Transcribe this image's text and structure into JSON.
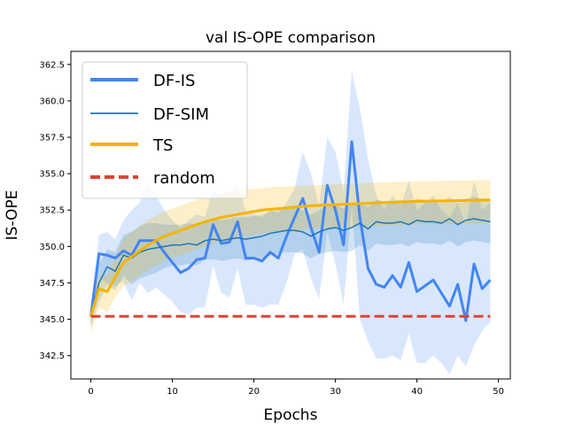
{
  "chart_data": {
    "type": "line",
    "title": "val IS-OPE comparison",
    "xlabel": "Epochs",
    "ylabel": "IS-OPE",
    "xlim": [
      -2.45,
      51.45
    ],
    "ylim": [
      340.9,
      363.4
    ],
    "xticks": [
      0,
      10,
      20,
      30,
      40,
      50
    ],
    "xtick_labels": [
      "0",
      "10",
      "20",
      "30",
      "40",
      "50"
    ],
    "yticks": [
      342.5,
      345.0,
      347.5,
      350.0,
      352.5,
      355.0,
      357.5,
      360.0,
      362.5
    ],
    "ytick_labels": [
      "342.5",
      "345.0",
      "347.5",
      "350.0",
      "352.5",
      "355.0",
      "357.5",
      "360.0",
      "362.5"
    ],
    "grid": false,
    "legend_position": "top-left",
    "series": [
      {
        "name": "DF-IS",
        "color": "#4285f4",
        "style": "solid-thick",
        "x": [
          0,
          1,
          2,
          3,
          4,
          5,
          6,
          7,
          8,
          9,
          10,
          11,
          12,
          13,
          14,
          15,
          16,
          17,
          18,
          19,
          20,
          21,
          22,
          23,
          24,
          25,
          26,
          27,
          28,
          29,
          30,
          31,
          32,
          33,
          34,
          35,
          36,
          37,
          38,
          39,
          40,
          41,
          42,
          43,
          44,
          45,
          46,
          47,
          48,
          49
        ],
        "values": [
          345.2,
          349.5,
          349.4,
          349.2,
          349.7,
          349.4,
          350.4,
          350.4,
          350.4,
          349.6,
          348.9,
          348.2,
          348.5,
          349.1,
          349.2,
          351.5,
          350.2,
          350.3,
          351.7,
          349.2,
          349.2,
          349.0,
          349.6,
          349.2,
          350.7,
          352.0,
          353.3,
          351.3,
          349.6,
          354.2,
          352.5,
          350.1,
          357.2,
          352.0,
          348.5,
          347.4,
          347.2,
          348.0,
          347.2,
          348.9,
          346.9,
          347.3,
          347.7,
          346.8,
          345.9,
          347.4,
          344.9,
          348.8,
          347.1,
          347.7
        ],
        "band_upper": [
          346.0,
          350.8,
          351.0,
          350.5,
          351.8,
          352.5,
          353.0,
          354.5,
          353.5,
          352.5,
          351.8,
          351.3,
          351.8,
          352.2,
          352.0,
          354.0,
          353.5,
          353.8,
          354.2,
          352.5,
          352.2,
          352.0,
          352.5,
          352.3,
          353.0,
          354.0,
          356.5,
          355.0,
          352.8,
          357.5,
          356.5,
          353.8,
          362.0,
          359.5,
          356.0,
          353.5,
          352.5,
          353.5,
          352.8,
          354.5,
          352.5,
          353.0,
          353.5,
          352.5,
          352.0,
          353.0,
          351.5,
          354.5,
          352.5,
          353.0
        ],
        "band_lower": [
          344.5,
          347.8,
          347.5,
          347.3,
          347.6,
          346.3,
          347.5,
          346.8,
          347.2,
          346.7,
          346.2,
          345.5,
          345.3,
          345.8,
          345.8,
          348.7,
          346.8,
          346.5,
          348.5,
          346.0,
          346.0,
          345.8,
          346.0,
          346.0,
          347.5,
          349.5,
          349.8,
          347.8,
          346.4,
          351.0,
          348.8,
          346.0,
          352.8,
          345.0,
          343.5,
          342.3,
          342.3,
          342.5,
          342.2,
          344.0,
          342.0,
          342.0,
          342.5,
          342.0,
          341.2,
          342.5,
          341.8,
          343.2,
          344.2,
          344.8
        ]
      },
      {
        "name": "DF-SIM",
        "color": "#1f77b4",
        "style": "solid-thin",
        "x": [
          0,
          1,
          2,
          3,
          4,
          5,
          6,
          7,
          8,
          9,
          10,
          11,
          12,
          13,
          14,
          15,
          16,
          17,
          18,
          19,
          20,
          21,
          22,
          23,
          24,
          25,
          26,
          27,
          28,
          29,
          30,
          31,
          32,
          33,
          34,
          35,
          36,
          37,
          38,
          39,
          40,
          41,
          42,
          43,
          44,
          45,
          46,
          47,
          48,
          49
        ],
        "values": [
          345.2,
          347.5,
          348.6,
          348.3,
          349.4,
          349.2,
          349.6,
          349.8,
          349.9,
          350.0,
          350.1,
          350.1,
          350.2,
          350.1,
          350.4,
          350.5,
          350.4,
          350.5,
          350.6,
          350.5,
          350.6,
          350.7,
          350.9,
          351.0,
          351.1,
          351.1,
          351.0,
          350.7,
          351.0,
          351.2,
          351.3,
          351.1,
          351.3,
          351.6,
          351.2,
          351.7,
          351.6,
          351.6,
          351.7,
          351.5,
          351.8,
          351.7,
          351.7,
          351.6,
          351.9,
          351.5,
          351.8,
          351.9,
          351.8,
          351.7
        ],
        "band_upper": [
          345.9,
          348.8,
          349.8,
          349.6,
          350.8,
          351.0,
          351.4,
          351.6,
          351.6,
          351.5,
          351.5,
          351.5,
          351.6,
          351.5,
          351.7,
          351.9,
          351.8,
          351.9,
          352.0,
          352.0,
          352.1,
          352.2,
          352.4,
          352.5,
          352.6,
          352.6,
          352.5,
          352.2,
          352.5,
          352.8,
          352.9,
          352.6,
          352.9,
          353.1,
          352.7,
          353.2,
          353.1,
          353.1,
          353.2,
          353.0,
          353.3,
          353.2,
          353.2,
          353.1,
          353.4,
          353.0,
          353.3,
          353.4,
          353.3,
          353.2
        ],
        "band_lower": [
          344.5,
          346.2,
          347.3,
          347.0,
          348.0,
          347.4,
          347.8,
          348.0,
          348.2,
          348.5,
          348.7,
          348.7,
          348.8,
          348.7,
          349.1,
          349.1,
          349.0,
          349.1,
          349.2,
          349.0,
          349.1,
          349.2,
          349.4,
          349.5,
          349.6,
          349.6,
          349.5,
          349.2,
          349.5,
          349.6,
          349.7,
          349.6,
          349.7,
          350.1,
          349.7,
          350.2,
          350.1,
          350.1,
          350.2,
          350.0,
          350.3,
          350.2,
          350.2,
          350.1,
          350.4,
          350.0,
          350.3,
          350.4,
          350.3,
          350.2
        ]
      },
      {
        "name": "TS",
        "color": "#f4b400",
        "style": "solid-thick",
        "x": [
          0,
          1,
          2,
          3,
          4,
          5,
          6,
          7,
          8,
          9,
          10,
          11,
          12,
          13,
          14,
          15,
          16,
          17,
          18,
          19,
          20,
          21,
          22,
          23,
          24,
          25,
          26,
          27,
          28,
          29,
          30,
          31,
          32,
          33,
          34,
          35,
          36,
          37,
          38,
          39,
          40,
          41,
          42,
          43,
          44,
          45,
          46,
          47,
          48,
          49
        ],
        "values": [
          345.2,
          347.1,
          346.9,
          347.9,
          348.9,
          349.3,
          349.7,
          350.1,
          350.4,
          350.7,
          350.9,
          351.1,
          351.3,
          351.5,
          351.7,
          351.85,
          352.0,
          352.1,
          352.2,
          352.3,
          352.4,
          352.5,
          352.55,
          352.6,
          352.65,
          352.7,
          352.75,
          352.8,
          352.82,
          352.85,
          352.87,
          352.9,
          352.92,
          352.95,
          352.97,
          353.0,
          353.02,
          353.04,
          353.06,
          353.08,
          353.1,
          353.11,
          353.12,
          353.13,
          353.14,
          353.15,
          353.16,
          353.17,
          353.18,
          353.2
        ],
        "band_upper": [
          346.0,
          348.0,
          348.0,
          349.3,
          350.5,
          351.0,
          351.4,
          351.8,
          352.1,
          352.4,
          352.6,
          352.8,
          353.0,
          353.2,
          353.35,
          353.5,
          353.6,
          353.7,
          353.8,
          353.9,
          353.95,
          354.0,
          354.05,
          354.1,
          354.12,
          354.15,
          354.18,
          354.2,
          354.22,
          354.25,
          354.27,
          354.3,
          354.32,
          354.34,
          354.36,
          354.38,
          354.4,
          354.42,
          354.44,
          354.45,
          354.47,
          354.48,
          354.49,
          354.5,
          354.51,
          354.52,
          354.53,
          354.54,
          354.55,
          354.55
        ],
        "band_lower": [
          344.0,
          345.8,
          345.5,
          346.5,
          347.3,
          347.6,
          348.0,
          348.4,
          348.7,
          349.0,
          349.2,
          349.4,
          349.6,
          349.8,
          350.0,
          350.2,
          350.4,
          350.5,
          350.6,
          350.7,
          350.8,
          350.9,
          350.95,
          351.0,
          351.05,
          351.1,
          351.15,
          351.2,
          351.22,
          351.25,
          351.27,
          351.3,
          351.32,
          351.35,
          351.37,
          351.4,
          351.42,
          351.44,
          351.46,
          351.48,
          351.5,
          351.51,
          351.52,
          351.53,
          351.54,
          351.55,
          351.56,
          351.57,
          351.58,
          351.6
        ]
      },
      {
        "name": "random",
        "color": "#db4437",
        "style": "dashed",
        "x": [
          0,
          49
        ],
        "values": [
          345.2,
          345.2
        ]
      }
    ]
  }
}
